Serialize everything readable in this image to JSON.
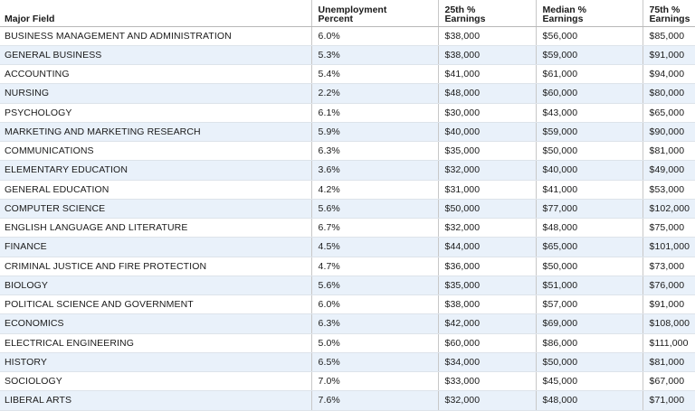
{
  "table": {
    "headers": [
      [
        "Major Field"
      ],
      [
        "Unemployment",
        "Percent"
      ],
      [
        "25th %",
        "Earnings"
      ],
      [
        "Median %",
        "Earnings"
      ],
      [
        "75th %",
        "Earnings"
      ]
    ],
    "rows": [
      [
        "BUSINESS MANAGEMENT AND ADMINISTRATION",
        "6.0%",
        "$38,000",
        "$56,000",
        "$85,000"
      ],
      [
        "GENERAL BUSINESS",
        "5.3%",
        "$38,000",
        "$59,000",
        "$91,000"
      ],
      [
        "ACCOUNTING",
        "5.4%",
        "$41,000",
        "$61,000",
        "$94,000"
      ],
      [
        "NURSING",
        "2.2%",
        "$48,000",
        "$60,000",
        "$80,000"
      ],
      [
        "PSYCHOLOGY",
        "6.1%",
        "$30,000",
        "$43,000",
        "$65,000"
      ],
      [
        "MARKETING AND MARKETING RESEARCH",
        "5.9%",
        "$40,000",
        "$59,000",
        "$90,000"
      ],
      [
        "COMMUNICATIONS",
        "6.3%",
        "$35,000",
        "$50,000",
        "$81,000"
      ],
      [
        "ELEMENTARY EDUCATION",
        "3.6%",
        "$32,000",
        "$40,000",
        "$49,000"
      ],
      [
        "GENERAL EDUCATION",
        "4.2%",
        "$31,000",
        "$41,000",
        "$53,000"
      ],
      [
        "COMPUTER SCIENCE",
        "5.6%",
        "$50,000",
        "$77,000",
        "$102,000"
      ],
      [
        "ENGLISH LANGUAGE AND LITERATURE",
        "6.7%",
        "$32,000",
        "$48,000",
        "$75,000"
      ],
      [
        "FINANCE",
        "4.5%",
        "$44,000",
        "$65,000",
        "$101,000"
      ],
      [
        "CRIMINAL JUSTICE AND FIRE PROTECTION",
        "4.7%",
        "$36,000",
        "$50,000",
        "$73,000"
      ],
      [
        "BIOLOGY",
        "5.6%",
        "$35,000",
        "$51,000",
        "$76,000"
      ],
      [
        "POLITICAL SCIENCE AND GOVERNMENT",
        "6.0%",
        "$38,000",
        "$57,000",
        "$91,000"
      ],
      [
        "ECONOMICS",
        "6.3%",
        "$42,000",
        "$69,000",
        "$108,000"
      ],
      [
        "ELECTRICAL ENGINEERING",
        "5.0%",
        "$60,000",
        "$86,000",
        "$111,000"
      ],
      [
        "HISTORY",
        "6.5%",
        "$34,000",
        "$50,000",
        "$81,000"
      ],
      [
        "SOCIOLOGY",
        "7.0%",
        "$33,000",
        "$45,000",
        "$67,000"
      ],
      [
        "LIBERAL ARTS",
        "7.6%",
        "$32,000",
        "$48,000",
        "$71,000"
      ]
    ]
  }
}
